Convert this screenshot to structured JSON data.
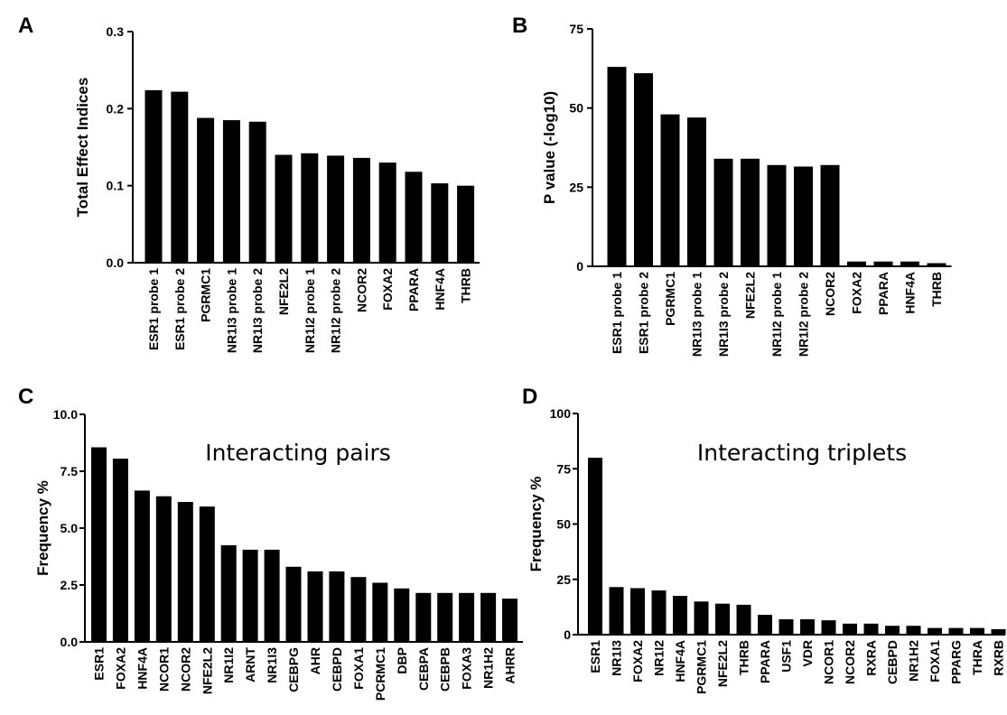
{
  "chart_data": [
    {
      "panel": "A",
      "type": "bar",
      "title": "",
      "ylabel": "Total Effect Indices",
      "xlabel": "",
      "ylim": [
        0,
        0.3
      ],
      "yticks": [
        "0.0",
        "0.1",
        "0.2",
        "0.3"
      ],
      "categories": [
        "ESR1 probe 1",
        "ESR1 probe 2",
        "PGRMC1",
        "NR1I3 probe 1",
        "NR1I3 probe 2",
        "NFE2L2",
        "NR1I2 probe 1",
        "NR1I2 probe 2",
        "NCOR2",
        "FOXA2",
        "PPARA",
        "HNF4A",
        "THRB"
      ],
      "values": [
        0.224,
        0.222,
        0.188,
        0.185,
        0.183,
        0.14,
        0.142,
        0.139,
        0.136,
        0.13,
        0.118,
        0.103,
        0.1
      ]
    },
    {
      "panel": "B",
      "type": "bar",
      "title": "",
      "ylabel": "P value (-log10)",
      "xlabel": "",
      "ylim": [
        0,
        75
      ],
      "yticks": [
        "0",
        "25",
        "50",
        "75"
      ],
      "categories": [
        "ESR1 probe 1",
        "ESR1 probe 2",
        "PGRMC1",
        "NR1I3 probe 1",
        "NR1I3 probe 2",
        "NFE2L2",
        "NR1I2 probe 1",
        "NR1I2 probe 2",
        "NCOR2",
        "FOXA2",
        "PPARA",
        "HNF4A",
        "THRB"
      ],
      "values": [
        63,
        61,
        48,
        47,
        34,
        34,
        32,
        31.5,
        32,
        1.5,
        1.5,
        1.5,
        1
      ]
    },
    {
      "panel": "C",
      "type": "bar",
      "title": "Interacting pairs",
      "ylabel": "Frequency %",
      "xlabel": "",
      "ylim": [
        0,
        10
      ],
      "yticks": [
        "0.0",
        "2.5",
        "5.0",
        "7.5",
        "10.0"
      ],
      "categories": [
        "ESR1",
        "FOXA2",
        "HNF4A",
        "NCOR1",
        "NCOR2",
        "NFE2L2",
        "NR1I2",
        "ARNT",
        "NR1I3",
        "CEBPG",
        "AHR",
        "CEBPD",
        "FOXA1",
        "PCRMC1",
        "DBP",
        "CEBPA",
        "CEBPB",
        "FOXA3",
        "NR1H2",
        "AHRR"
      ],
      "values": [
        8.55,
        8.05,
        6.65,
        6.4,
        6.15,
        5.95,
        4.25,
        4.05,
        4.05,
        3.3,
        3.1,
        3.1,
        2.85,
        2.6,
        2.35,
        2.15,
        2.15,
        2.15,
        2.15,
        1.9
      ]
    },
    {
      "panel": "D",
      "type": "bar",
      "title": "Interacting triplets",
      "ylabel": "Frequency %",
      "xlabel": "",
      "ylim": [
        0,
        100
      ],
      "yticks": [
        "0",
        "25",
        "50",
        "75",
        "100"
      ],
      "categories": [
        "ESR1",
        "NR1I3",
        "FOXA2",
        "NR1I2",
        "HNF4A",
        "PGRMC1",
        "NFE2L2",
        "THRB",
        "PPARA",
        "USF1",
        "VDR",
        "NCOR1",
        "NCOR2",
        "RXRA",
        "CEBPD",
        "NR1H2",
        "FOXA1",
        "PPARG",
        "THRA",
        "RXRB"
      ],
      "values": [
        80,
        21.5,
        21,
        20,
        17.5,
        15,
        14,
        13.5,
        9,
        7,
        7,
        6.5,
        5,
        5,
        4,
        4,
        3,
        3,
        3,
        2.5
      ]
    }
  ]
}
